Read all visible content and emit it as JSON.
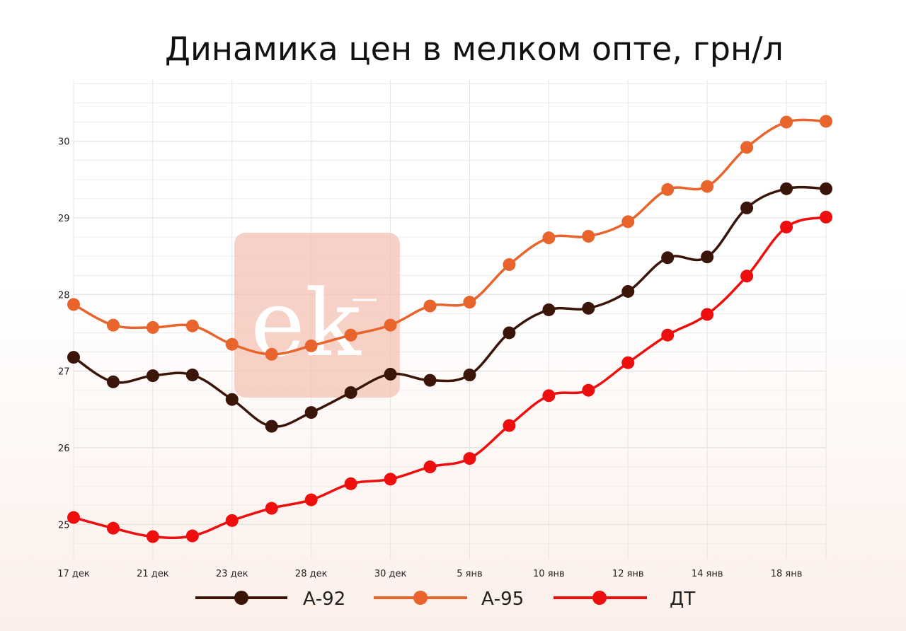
{
  "chart_data": {
    "type": "line",
    "title": "Динамика цен в мелком опте, грн/л",
    "xlabel": "",
    "ylabel": "",
    "ylim": [
      24.55,
      30.8
    ],
    "y_ticks": [
      25,
      26,
      27,
      28,
      29,
      30
    ],
    "categories": [
      "17 дек",
      "",
      "21 дек",
      "",
      "23 дек",
      "",
      "28 дек",
      "",
      "30 дек",
      "",
      "5 янв",
      "",
      "10 янв",
      "",
      "12 янв",
      "",
      "14 янв",
      "",
      "18 янв",
      ""
    ],
    "grid": true,
    "legend_position": "bottom",
    "series": [
      {
        "name": "А-92",
        "color": "#3b1509",
        "values": [
          27.18,
          26.86,
          26.94,
          26.95,
          26.63,
          26.28,
          26.46,
          26.72,
          26.96,
          26.88,
          26.95,
          27.5,
          27.8,
          27.82,
          28.04,
          28.48,
          28.49,
          29.13,
          29.38,
          29.38
        ]
      },
      {
        "name": "А-95",
        "color": "#e8642c",
        "values": [
          27.87,
          27.6,
          27.57,
          27.59,
          27.35,
          27.22,
          27.33,
          27.47,
          27.6,
          27.85,
          27.9,
          28.39,
          28.74,
          28.76,
          28.95,
          29.37,
          29.41,
          29.92,
          30.25,
          30.26
        ]
      },
      {
        "name": "ДТ",
        "color": "#ee0e0e",
        "values": [
          25.09,
          24.95,
          24.84,
          24.85,
          25.05,
          25.21,
          25.32,
          25.53,
          25.59,
          25.75,
          25.86,
          26.29,
          26.68,
          26.75,
          27.11,
          27.47,
          27.74,
          28.24,
          28.88,
          29.01
        ]
      }
    ]
  },
  "watermark": {
    "text": "ek",
    "color": "#f4c2b4"
  }
}
